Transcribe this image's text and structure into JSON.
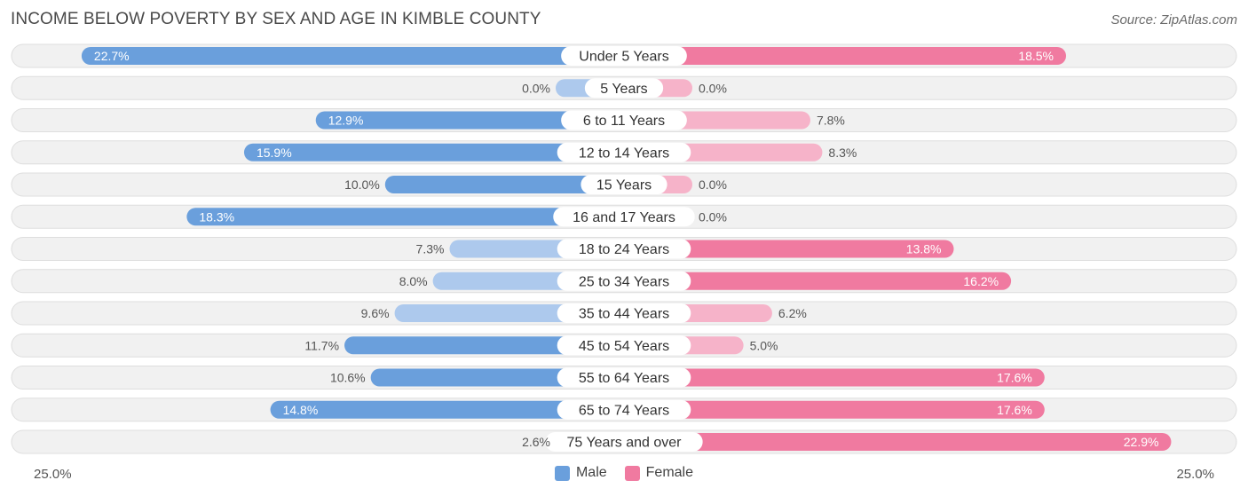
{
  "header": {
    "title": "INCOME BELOW POVERTY BY SEX AND AGE IN KIMBLE COUNTY",
    "source": "Source: ZipAtlas.com"
  },
  "axis": {
    "left_label": "25.0%",
    "right_label": "25.0%"
  },
  "legend": {
    "male_label": "Male",
    "female_label": "Female"
  },
  "colors": {
    "male_strong": "#6a9fdc",
    "male_light": "#adc9ed",
    "female_strong": "#f07aa0",
    "female_light": "#f6b3c9",
    "row_bg": "#f1f1f1",
    "row_border": "#dedede"
  },
  "chart_data": {
    "type": "bar",
    "orientation": "horizontal-diverging",
    "title": "INCOME BELOW POVERTY BY SEX AND AGE IN KIMBLE COUNTY",
    "xlim": [
      -25,
      25
    ],
    "unit": "%",
    "legend_position": "bottom-center",
    "categories": [
      "Under 5 Years",
      "5 Years",
      "6 to 11 Years",
      "12 to 14 Years",
      "15 Years",
      "16 and 17 Years",
      "18 to 24 Years",
      "25 to 34 Years",
      "35 to 44 Years",
      "45 to 54 Years",
      "55 to 64 Years",
      "65 to 74 Years",
      "75 Years and over"
    ],
    "series": [
      {
        "name": "Male",
        "values": [
          22.7,
          0.0,
          12.9,
          15.9,
          10.0,
          18.3,
          7.3,
          8.0,
          9.6,
          11.7,
          10.6,
          14.8,
          2.6
        ],
        "labels": [
          "22.7%",
          "0.0%",
          "12.9%",
          "15.9%",
          "10.0%",
          "18.3%",
          "7.3%",
          "8.0%",
          "9.6%",
          "11.7%",
          "10.6%",
          "14.8%",
          "2.6%"
        ]
      },
      {
        "name": "Female",
        "values": [
          18.5,
          0.0,
          7.8,
          8.3,
          0.0,
          0.0,
          13.8,
          16.2,
          6.2,
          5.0,
          17.6,
          17.6,
          22.9
        ],
        "labels": [
          "18.5%",
          "0.0%",
          "7.8%",
          "8.3%",
          "0.0%",
          "0.0%",
          "13.8%",
          "16.2%",
          "6.2%",
          "5.0%",
          "17.6%",
          "17.6%",
          "22.9%"
        ]
      }
    ]
  }
}
